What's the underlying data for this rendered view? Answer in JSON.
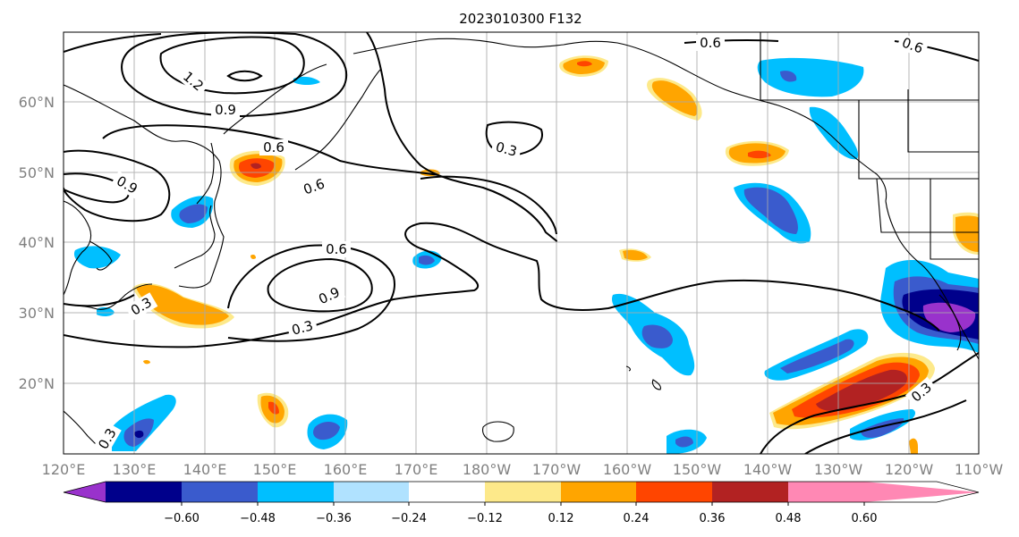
{
  "title": "2023010300 F132",
  "latitude_labels": [
    "60°N",
    "50°N",
    "40°N",
    "30°N",
    "20°N"
  ],
  "longitude_labels": [
    "120°E",
    "130°E",
    "140°E",
    "150°E",
    "160°E",
    "170°E",
    "180°W",
    "170°W",
    "160°W",
    "150°W",
    "140°W",
    "130°W",
    "120°W",
    "110°W"
  ],
  "colorbar": {
    "tick_labels": [
      "−0.60",
      "−0.48",
      "−0.36",
      "−0.24",
      "−0.12",
      "0.12",
      "0.24",
      "0.36",
      "0.48",
      "0.60"
    ],
    "colors": [
      "#9932cc",
      "#00008b",
      "#3a5bcd",
      "#00bfff",
      "#b0e2ff",
      "#ffffff",
      "#fde98a",
      "#ffa500",
      "#ff4500",
      "#b22222",
      "#ff88b4"
    ]
  },
  "contour_labels": [
    "1.2",
    "0.9",
    "0.6",
    "0.6",
    "0.9",
    "0.3",
    "0.6",
    "0.9",
    "0.3",
    "0.3",
    "0.6",
    "0.6",
    "0.3",
    "0.3"
  ]
}
